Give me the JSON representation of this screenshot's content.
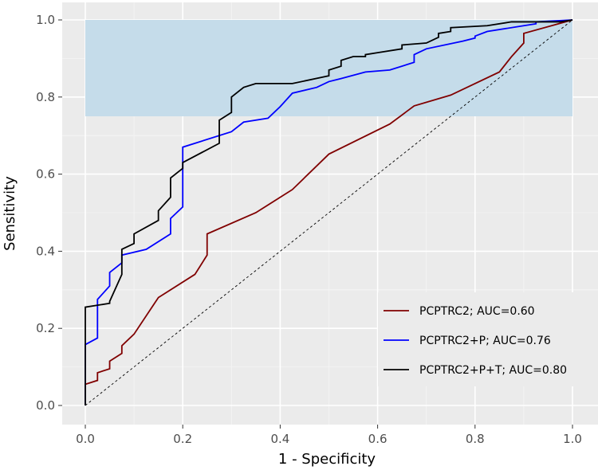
{
  "chart_data": {
    "type": "line",
    "title": "",
    "xlabel": "1 - Specificity",
    "ylabel": "Sensitivity",
    "xlim": [
      -0.05,
      1.05
    ],
    "ylim": [
      -0.02,
      1.02
    ],
    "x_ticks": [
      "0.0",
      "0.2",
      "0.4",
      "0.6",
      "0.8",
      "1.0"
    ],
    "y_ticks": [
      "0.0",
      "0.2",
      "0.4",
      "0.6",
      "0.8",
      "1.0"
    ],
    "grid": true,
    "legend_position": "bottom-right",
    "shaded_region": {
      "x": [
        0.0,
        1.0
      ],
      "y": [
        0.75,
        1.0
      ],
      "color": "#c5dcea"
    },
    "reference_line": {
      "from": [
        0,
        0
      ],
      "to": [
        1,
        1
      ],
      "style": "dashed",
      "color": "#000000"
    },
    "series": [
      {
        "name": "PCPTRC2; AUC=0.60",
        "color": "#800000",
        "x": [
          0,
          0,
          0.025,
          0.025,
          0.05,
          0.05,
          0.075,
          0.075,
          0.1,
          0.15,
          0.225,
          0.25,
          0.25,
          0.35,
          0.425,
          0.5,
          0.625,
          0.675,
          0.75,
          0.85,
          0.875,
          0.9,
          0.9,
          1.0
        ],
        "y": [
          0,
          0.055,
          0.065,
          0.085,
          0.095,
          0.115,
          0.135,
          0.155,
          0.185,
          0.28,
          0.34,
          0.39,
          0.445,
          0.5,
          0.56,
          0.652,
          0.73,
          0.777,
          0.805,
          0.865,
          0.905,
          0.94,
          0.965,
          1.0
        ]
      },
      {
        "name": "PCPTRC2+P; AUC=0.76",
        "color": "#0000ff",
        "x": [
          0,
          0,
          0.025,
          0.025,
          0.05,
          0.05,
          0.075,
          0.075,
          0.125,
          0.175,
          0.175,
          0.2,
          0.2,
          0.3,
          0.325,
          0.375,
          0.4,
          0.425,
          0.475,
          0.5,
          0.525,
          0.575,
          0.625,
          0.675,
          0.675,
          0.7,
          0.775,
          0.8,
          0.8,
          0.825,
          0.9,
          0.925,
          0.925,
          1.0
        ],
        "y": [
          0,
          0.158,
          0.175,
          0.275,
          0.31,
          0.345,
          0.37,
          0.39,
          0.405,
          0.445,
          0.485,
          0.515,
          0.67,
          0.71,
          0.735,
          0.745,
          0.775,
          0.81,
          0.825,
          0.84,
          0.848,
          0.865,
          0.87,
          0.89,
          0.91,
          0.925,
          0.945,
          0.953,
          0.958,
          0.97,
          0.985,
          0.99,
          0.995,
          1.0
        ]
      },
      {
        "name": "PCPTRC2+P+T; AUC=0.80",
        "color": "#000000",
        "x": [
          0,
          0,
          0.05,
          0.05,
          0.075,
          0.075,
          0.1,
          0.1,
          0.15,
          0.15,
          0.175,
          0.175,
          0.2,
          0.2,
          0.275,
          0.275,
          0.3,
          0.3,
          0.325,
          0.35,
          0.425,
          0.5,
          0.5,
          0.525,
          0.525,
          0.55,
          0.575,
          0.575,
          0.6,
          0.65,
          0.65,
          0.7,
          0.725,
          0.725,
          0.75,
          0.75,
          0.825,
          0.875,
          0.975,
          1.0
        ],
        "y": [
          0,
          0.255,
          0.265,
          0.27,
          0.34,
          0.405,
          0.42,
          0.445,
          0.48,
          0.505,
          0.54,
          0.59,
          0.615,
          0.63,
          0.68,
          0.74,
          0.76,
          0.8,
          0.825,
          0.835,
          0.835,
          0.855,
          0.87,
          0.88,
          0.895,
          0.905,
          0.905,
          0.91,
          0.915,
          0.925,
          0.935,
          0.94,
          0.955,
          0.965,
          0.97,
          0.98,
          0.985,
          0.995,
          0.995,
          1.0
        ]
      }
    ]
  }
}
